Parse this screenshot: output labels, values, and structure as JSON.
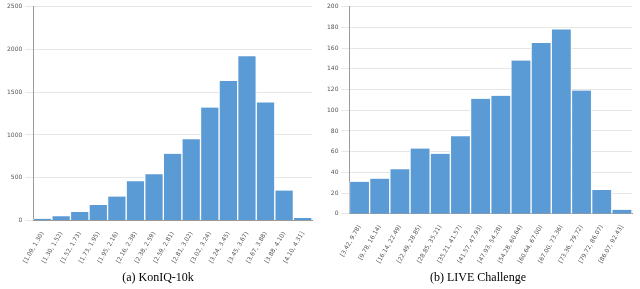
{
  "chart_data": [
    {
      "type": "bar",
      "title": "(a) KonIQ-10k",
      "categories": [
        "[1.09, 1.30)",
        "[1.30, 1.52)",
        "[1.52, 1.73)",
        "[1.73, 1.95)",
        "[1.95, 2.16)",
        "[2.16, 2.38)",
        "[2.38, 2.59)",
        "[2.59, 2.81)",
        "[2.81, 3.02)",
        "[3.02, 3.24)",
        "[3.24, 3.45)",
        "[3.45, 3.67)",
        "[3.67, 3.88)",
        "[3.88, 4.10)",
        "[4.10, 4.31]"
      ],
      "values": [
        20,
        50,
        100,
        180,
        280,
        460,
        540,
        780,
        950,
        1320,
        1630,
        1920,
        1380,
        350,
        30
      ],
      "color": "#5b9bd5",
      "ylim": [
        0,
        2500
      ],
      "yticks": [
        0,
        500,
        1000,
        1500,
        2000,
        2500
      ],
      "grid": true
    },
    {
      "type": "bar",
      "title": "(b) LIVE Challenge",
      "categories": [
        "[3.42, 9.78)",
        "[9.78, 16.14)",
        "[16.14, 22.49)",
        "[22.49, 28.85)",
        "[28.85, 35.21)",
        "[35.21, 41.57)",
        "[41.57, 47.93)",
        "[47.93, 54.28)",
        "[54.28, 60.64)",
        "[60.64, 67.00)",
        "[67.00, 73.36)",
        "[73.36, 79.72)",
        "[79.72, 86.07)",
        "[86.07, 92.43]"
      ],
      "values": [
        31,
        34,
        43,
        63,
        58,
        75,
        111,
        114,
        148,
        165,
        178,
        119,
        23,
        4
      ],
      "color": "#5b9bd5",
      "ylim": [
        0,
        200
      ],
      "yticks": [
        0,
        20,
        40,
        60,
        80,
        100,
        120,
        140,
        160,
        180,
        200
      ],
      "grid": true
    }
  ]
}
